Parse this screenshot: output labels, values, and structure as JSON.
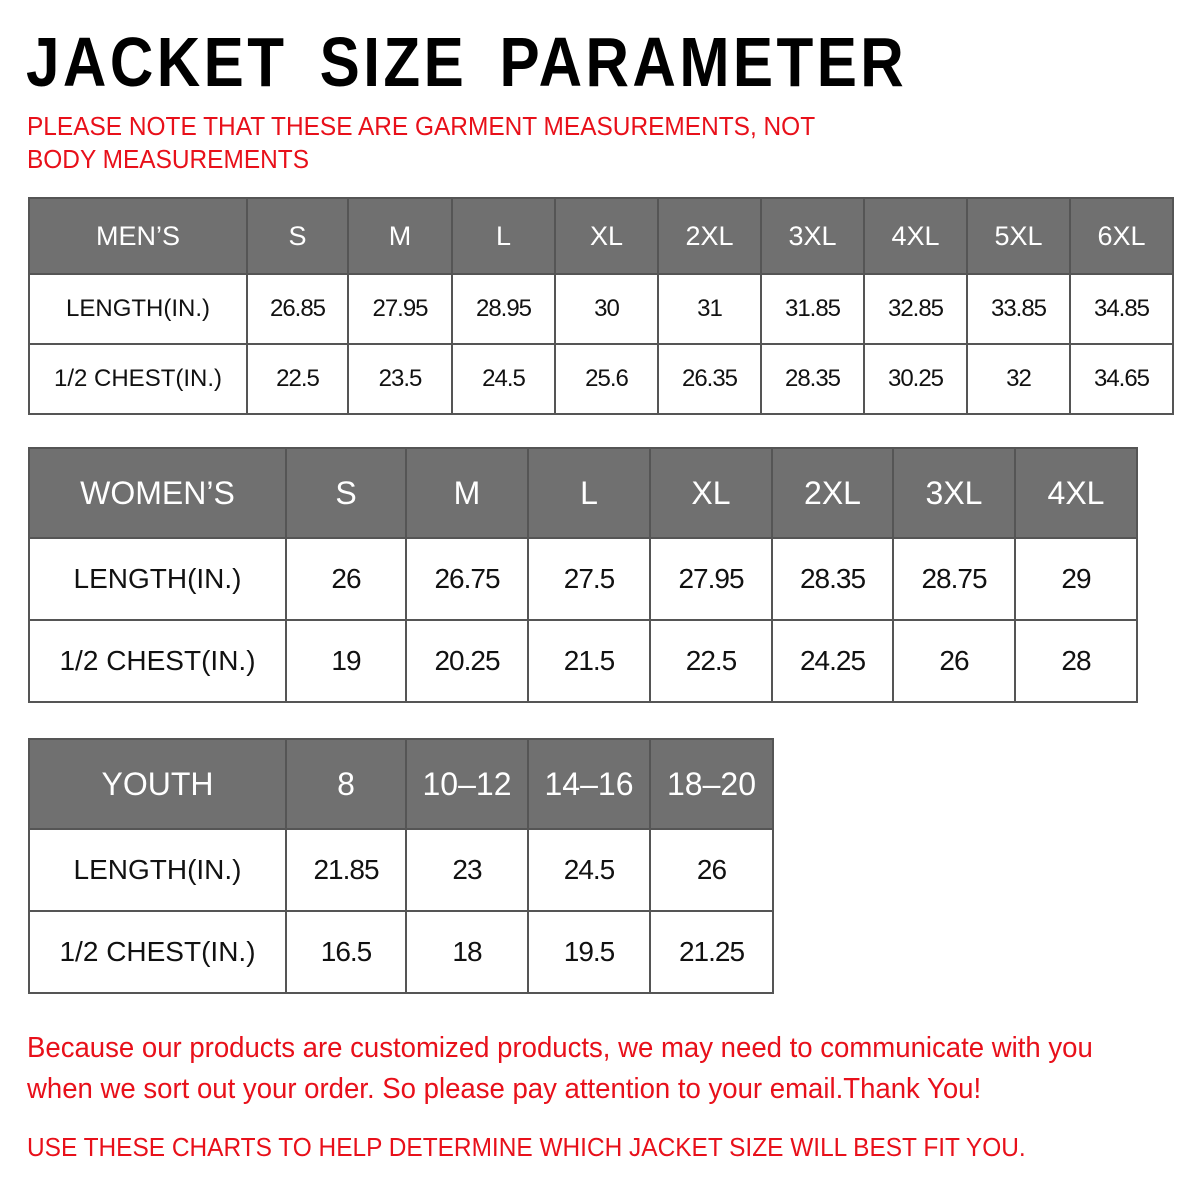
{
  "title": "JACKET SIZE PARAMETER",
  "note": "PLEASE NOTE THAT THESE ARE GARMENT MEASUREMENTS, NOT BODY MEASUREMENTS",
  "mens": {
    "header": [
      "MEN’S",
      "S",
      "M",
      "L",
      "XL",
      "2XL",
      "3XL",
      "4XL",
      "5XL",
      "6XL"
    ],
    "rows": [
      [
        "LENGTH(IN.)",
        "26.85",
        "27.95",
        "28.95",
        "30",
        "31",
        "31.85",
        "32.85",
        "33.85",
        "34.85"
      ],
      [
        "1/2 CHEST(IN.)",
        "22.5",
        "23.5",
        "24.5",
        "25.6",
        "26.35",
        "28.35",
        "30.25",
        "32",
        "34.65"
      ]
    ]
  },
  "womens": {
    "header": [
      "WOMEN’S",
      "S",
      "M",
      "L",
      "XL",
      "2XL",
      "3XL",
      "4XL"
    ],
    "rows": [
      [
        "LENGTH(IN.)",
        "26",
        "26.75",
        "27.5",
        "27.95",
        "28.35",
        "28.75",
        "29"
      ],
      [
        "1/2 CHEST(IN.)",
        "19",
        "20.25",
        "21.5",
        "22.5",
        "24.25",
        "26",
        "28"
      ]
    ]
  },
  "youth": {
    "header": [
      "YOUTH",
      "8",
      "10–12",
      "14–16",
      "18–20"
    ],
    "rows": [
      [
        "LENGTH(IN.)",
        "21.85",
        "23",
        "24.5",
        "26"
      ],
      [
        "1/2 CHEST(IN.)",
        "16.5",
        "18",
        "19.5",
        "21.25"
      ]
    ]
  },
  "paragraph": "Because our products are customized products, we may need to communicate with you when we sort out your order. So please pay attention to your email.Thank You!",
  "footer": "USE THESE CHARTS TO HELP DETERMINE WHICH JACKET SIZE WILL BEST FIT YOU.",
  "colors": {
    "header_bg": "#707070",
    "accent_red": "#e8101a"
  }
}
